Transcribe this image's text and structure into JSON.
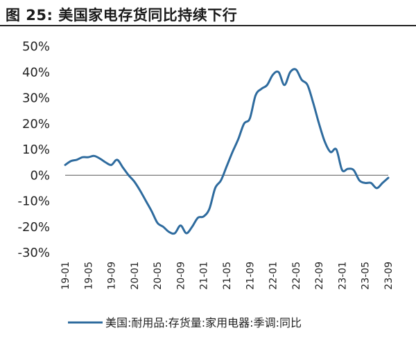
{
  "figure": {
    "title": "图 25:  美国家电存货同比持续下行"
  },
  "chart_data": {
    "type": "line",
    "title": "图 25:  美国家电存货同比持续下行",
    "xlabel": "",
    "ylabel": "",
    "ylim": [
      -30,
      50
    ],
    "yticks": [
      -30,
      -20,
      -10,
      0,
      10,
      20,
      30,
      40,
      50
    ],
    "ytick_labels": [
      "-30%",
      "-20%",
      "-10%",
      "0%",
      "10%",
      "20%",
      "30%",
      "40%",
      "50%"
    ],
    "xtick_labels": [
      "19-01",
      "19-05",
      "19-09",
      "20-01",
      "20-05",
      "20-09",
      "21-01",
      "21-05",
      "21-09",
      "22-01",
      "22-05",
      "22-09",
      "23-01",
      "23-05",
      "23-09"
    ],
    "grid": false,
    "legend_position": "bottom",
    "line_color": "#2e6b9e",
    "x": [
      "19-01",
      "19-02",
      "19-03",
      "19-04",
      "19-05",
      "19-06",
      "19-07",
      "19-08",
      "19-09",
      "19-10",
      "19-11",
      "19-12",
      "20-01",
      "20-02",
      "20-03",
      "20-04",
      "20-05",
      "20-06",
      "20-07",
      "20-08",
      "20-09",
      "20-10",
      "20-11",
      "20-12",
      "21-01",
      "21-02",
      "21-03",
      "21-04",
      "21-05",
      "21-06",
      "21-07",
      "21-08",
      "21-09",
      "21-10",
      "21-11",
      "21-12",
      "22-01",
      "22-02",
      "22-03",
      "22-04",
      "22-05",
      "22-06",
      "22-07",
      "22-08",
      "22-09",
      "22-10",
      "22-11",
      "22-12",
      "23-01",
      "23-02",
      "23-03",
      "23-04",
      "23-05",
      "23-06",
      "23-07",
      "23-08",
      "23-09"
    ],
    "series": [
      {
        "name": "美国:耐用品:存货量:家用电器:季调:同比",
        "values": [
          4,
          5.5,
          6,
          7,
          7,
          7.5,
          6.5,
          5,
          4,
          6,
          3,
          0,
          -2.5,
          -6,
          -10,
          -14,
          -18.5,
          -20,
          -22,
          -22.5,
          -19.5,
          -22.5,
          -20,
          -16.5,
          -16,
          -13,
          -5,
          -2,
          3.5,
          9,
          14,
          20,
          22,
          31,
          33.5,
          35,
          39,
          40,
          35,
          40,
          41,
          37,
          35,
          28,
          20,
          13,
          9,
          10,
          2,
          2.5,
          2,
          -2,
          -3,
          -3,
          -5,
          -3,
          -1
        ]
      }
    ]
  }
}
